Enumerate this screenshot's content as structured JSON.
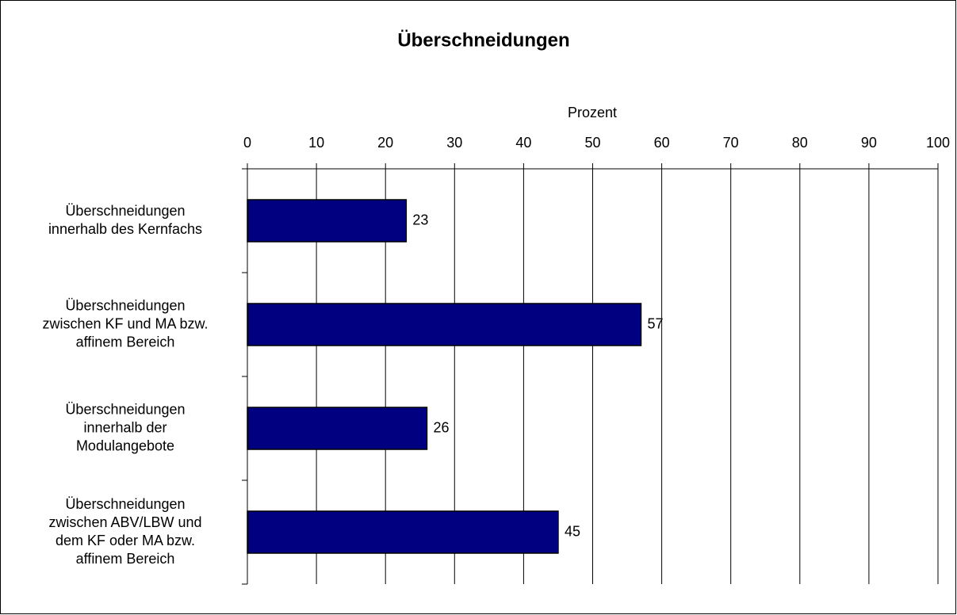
{
  "chart_data": {
    "type": "bar",
    "orientation": "horizontal",
    "title": "Überschneidungen",
    "xlabel": "Prozent",
    "categories": [
      "Überschneidungen\ninnerhalb des Kernfachs",
      "Überschneidungen\nzwischen KF und MA bzw.\naffinem Bereich",
      "Überschneidungen\ninnerhalb der\nModulangebote",
      "Überschneidungen\nzwischen ABV/LBW und\ndem KF oder MA bzw.\naffinem Bereich"
    ],
    "values": [
      23,
      57,
      26,
      45
    ],
    "color": "#000080",
    "xlim": [
      0,
      100
    ],
    "xticks": [
      0,
      10,
      20,
      30,
      40,
      50,
      60,
      70,
      80,
      90,
      100
    ],
    "grid": true
  }
}
